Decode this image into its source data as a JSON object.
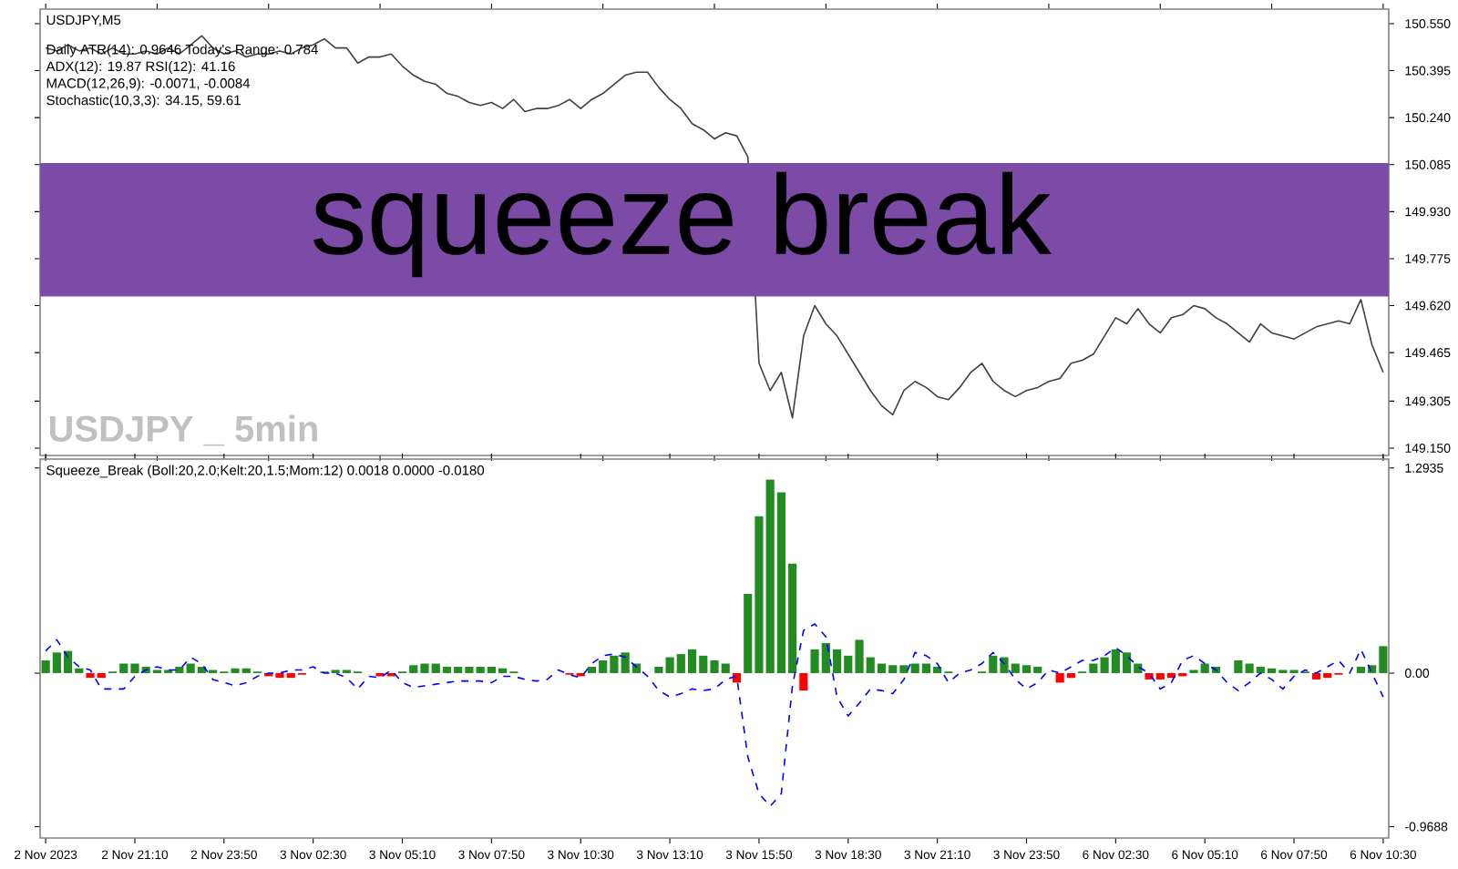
{
  "chart_data": [
    {
      "type": "line",
      "title": "USDJPY,M5",
      "annotations": [
        "Daily ATR(14): 0.9646 Today's Range: 0.784",
        "ADX(12): 19.87 RSI(12): 41.16",
        "MACD(12,26,9): -0.0071, -0.0084",
        "Stochastic(10,3,3): 34.15, 59.61",
        "USDJPY _ 5min"
      ],
      "categories": [
        null,
        null,
        null,
        null,
        null,
        null,
        null,
        null,
        null,
        null,
        null,
        null,
        null,
        null,
        null,
        null,
        null,
        null,
        null,
        null,
        null,
        null,
        null,
        null,
        null,
        null,
        null,
        null,
        null,
        null,
        null,
        null,
        null,
        null,
        null,
        null,
        null,
        null,
        null,
        null,
        null,
        null,
        null,
        null,
        null,
        null,
        null,
        null,
        null,
        null,
        null,
        null,
        null,
        null,
        null,
        null,
        null,
        null,
        null,
        null,
        null,
        null,
        null,
        null,
        null,
        null,
        null,
        null,
        null,
        null,
        null,
        null,
        null,
        null,
        null,
        null,
        null,
        null,
        null,
        null,
        null,
        null,
        null,
        null,
        null,
        null,
        null,
        null,
        null,
        null,
        null,
        null,
        null,
        null,
        null,
        null,
        null,
        null,
        null,
        null,
        null,
        null,
        null,
        null,
        null,
        null,
        null,
        null,
        null,
        null,
        null,
        null,
        null,
        null,
        null,
        null,
        null,
        null,
        null,
        null,
        null
      ],
      "values": [
        150.47,
        150.46,
        150.48,
        150.46,
        150.47,
        150.45,
        150.47,
        150.45,
        150.45,
        150.46,
        150.45,
        150.47,
        150.45,
        150.48,
        150.51,
        150.47,
        150.45,
        150.46,
        150.44,
        150.45,
        150.45,
        150.46,
        150.45,
        150.47,
        150.48,
        150.5,
        150.47,
        150.47,
        150.42,
        150.44,
        150.44,
        150.45,
        150.41,
        150.38,
        150.36,
        150.35,
        150.32,
        150.31,
        150.29,
        150.28,
        150.29,
        150.27,
        150.3,
        150.26,
        150.27,
        150.27,
        150.28,
        150.3,
        150.27,
        150.3,
        150.32,
        150.35,
        150.38,
        150.39,
        150.39,
        150.34,
        150.3,
        150.27,
        150.22,
        150.2,
        150.17,
        150.19,
        150.18,
        150.11,
        149.43,
        149.34,
        149.4,
        149.25,
        149.52,
        149.62,
        149.56,
        149.52,
        149.46,
        149.4,
        149.34,
        149.29,
        149.26,
        149.34,
        149.37,
        149.35,
        149.32,
        149.31,
        149.35,
        149.4,
        149.43,
        149.37,
        149.34,
        149.32,
        149.34,
        149.35,
        149.37,
        149.38,
        149.43,
        149.44,
        149.46,
        149.52,
        149.58,
        149.56,
        149.61,
        149.56,
        149.53,
        149.58,
        149.59,
        149.62,
        149.61,
        149.58,
        149.56,
        149.53,
        149.5,
        149.56,
        149.53,
        149.52,
        149.51,
        149.53,
        149.55,
        149.56,
        149.57,
        149.56,
        149.64,
        149.49,
        149.4
      ],
      "color": "#404040",
      "ylim": [
        149.126,
        150.598
      ],
      "yticks": [
        {
          "value": 150.55,
          "label": "150.550"
        },
        {
          "value": 150.395,
          "label": "150.395"
        },
        {
          "value": 150.24,
          "label": "150.240"
        },
        {
          "value": 150.085,
          "label": "150.085"
        },
        {
          "value": 149.93,
          "label": "149.930"
        },
        {
          "value": 149.775,
          "label": "149.775"
        },
        {
          "value": 149.62,
          "label": "149.620"
        },
        {
          "value": 149.465,
          "label": "149.465"
        },
        {
          "value": 149.305,
          "label": "149.305"
        },
        {
          "value": 149.15,
          "label": "149.150"
        }
      ],
      "bands": [
        {
          "axis": "y",
          "from": 149.65,
          "to": 150.09,
          "label": "squeeze break",
          "color": "#7b4ba6"
        }
      ],
      "tick_labels": "y"
    },
    {
      "type": "bar",
      "title": "Squeeze_Break (Boll:20,2.0;Kelt:20,1.5;Mom:12) 0.0018 0.0000 -0.0180",
      "categories": [
        "2 Nov 2023",
        null,
        null,
        null,
        null,
        null,
        null,
        null,
        "2 Nov 21:10",
        null,
        null,
        null,
        null,
        null,
        null,
        null,
        "2 Nov 23:50",
        null,
        null,
        null,
        null,
        null,
        null,
        null,
        "3 Nov 02:30",
        null,
        null,
        null,
        null,
        null,
        null,
        null,
        "3 Nov 05:10",
        null,
        null,
        null,
        null,
        null,
        null,
        null,
        "3 Nov 07:50",
        null,
        null,
        null,
        null,
        null,
        null,
        null,
        "3 Nov 10:30",
        null,
        null,
        null,
        null,
        null,
        null,
        null,
        "3 Nov 13:10",
        null,
        null,
        null,
        null,
        null,
        null,
        null,
        "3 Nov 15:50",
        null,
        null,
        null,
        null,
        null,
        null,
        null,
        "3 Nov 18:30",
        null,
        null,
        null,
        null,
        null,
        null,
        null,
        "3 Nov 21:10",
        null,
        null,
        null,
        null,
        null,
        null,
        null,
        "3 Nov 23:50",
        null,
        null,
        null,
        null,
        null,
        null,
        null,
        "6 Nov 02:30",
        null,
        null,
        null,
        null,
        null,
        null,
        null,
        "6 Nov 05:10",
        null,
        null,
        null,
        null,
        null,
        null,
        null,
        "6 Nov 07:50",
        null,
        null,
        null,
        null,
        null,
        null,
        null,
        "6 Nov 10:30"
      ],
      "series": [
        {
          "type": "bar",
          "values": [
            0.08,
            0.13,
            0.14,
            0.03,
            -0.03,
            -0.03,
            0.01,
            0.06,
            0.06,
            0.04,
            0.02,
            0.02,
            0.04,
            0.06,
            0.04,
            0.02,
            0.01,
            0.03,
            0.03,
            0.01,
            -0.02,
            -0.03,
            -0.03,
            -0.01,
            0,
            0.01,
            0.02,
            0.02,
            0.01,
            0,
            -0.02,
            -0.02,
            0.01,
            0.05,
            0.06,
            0.06,
            0.04,
            0.04,
            0.04,
            0.04,
            0.04,
            0.03,
            0.01,
            0,
            0,
            0,
            0,
            -0.01,
            -0.02,
            0.04,
            0.08,
            0.11,
            0.13,
            0.06,
            0,
            0.04,
            0.1,
            0.12,
            0.15,
            0.11,
            0.08,
            0.06,
            -0.06,
            0.5,
            0.99,
            1.22,
            1.14,
            0.69,
            -0.11,
            0.15,
            0.19,
            0.15,
            0.11,
            0.21,
            0.1,
            0.06,
            0.05,
            0.05,
            0.06,
            0.06,
            0.04,
            0.01,
            0,
            0,
            0.01,
            0.11,
            0.1,
            0.06,
            0.05,
            0.04,
            0,
            -0.06,
            -0.03,
            0.01,
            0.06,
            0.1,
            0.15,
            0.13,
            0.06,
            -0.04,
            -0.04,
            -0.03,
            -0.02,
            0.02,
            0.06,
            0.04,
            0,
            0.08,
            0.06,
            0.04,
            0.03,
            0.02,
            0.02,
            0.01,
            -0.04,
            -0.03,
            -0.01,
            0,
            0.04,
            0.05,
            0.17
          ],
          "colors": [
            "#228b22",
            "#228b22",
            "#228b22",
            "#228b22",
            "#ff0000",
            "#ff0000",
            "#228b22",
            "#228b22",
            "#228b22",
            "#228b22",
            "#228b22",
            "#228b22",
            "#228b22",
            "#228b22",
            "#228b22",
            "#228b22",
            "#228b22",
            "#228b22",
            "#228b22",
            "#228b22",
            "#ff0000",
            "#ff0000",
            "#ff0000",
            "#ff0000",
            "#228b22",
            "#228b22",
            "#228b22",
            "#228b22",
            "#228b22",
            "#228b22",
            "#ff0000",
            "#ff0000",
            "#228b22",
            "#228b22",
            "#228b22",
            "#228b22",
            "#228b22",
            "#228b22",
            "#228b22",
            "#228b22",
            "#228b22",
            "#228b22",
            "#228b22",
            "#228b22",
            "#228b22",
            "#228b22",
            "#228b22",
            "#ff0000",
            "#ff0000",
            "#228b22",
            "#228b22",
            "#228b22",
            "#228b22",
            "#228b22",
            "#228b22",
            "#228b22",
            "#228b22",
            "#228b22",
            "#228b22",
            "#228b22",
            "#228b22",
            "#228b22",
            "#ff0000",
            "#228b22",
            "#228b22",
            "#228b22",
            "#228b22",
            "#228b22",
            "#ff0000",
            "#228b22",
            "#228b22",
            "#228b22",
            "#228b22",
            "#228b22",
            "#228b22",
            "#228b22",
            "#228b22",
            "#228b22",
            "#228b22",
            "#228b22",
            "#228b22",
            "#228b22",
            "#228b22",
            "#228b22",
            "#228b22",
            "#228b22",
            "#228b22",
            "#228b22",
            "#228b22",
            "#228b22",
            "#228b22",
            "#ff0000",
            "#ff0000",
            "#228b22",
            "#228b22",
            "#228b22",
            "#228b22",
            "#228b22",
            "#228b22",
            "#ff0000",
            "#ff0000",
            "#ff0000",
            "#ff0000",
            "#228b22",
            "#228b22",
            "#228b22",
            "#228b22",
            "#228b22",
            "#228b22",
            "#228b22",
            "#228b22",
            "#228b22",
            "#228b22",
            "#228b22",
            "#ff0000",
            "#ff0000",
            "#ff0000",
            "#228b22",
            "#228b22",
            "#228b22",
            "#228b22"
          ]
        },
        {
          "type": "line",
          "color": "#0000ff",
          "line_style": "dashed",
          "values": [
            0.14,
            0.21,
            0.1,
            0.04,
            0.02,
            -0.1,
            -0.1,
            -0.1,
            -0.02,
            0.02,
            0.04,
            0.02,
            0.02,
            0.1,
            0.06,
            -0.04,
            -0.06,
            -0.08,
            -0.06,
            -0.02,
            0,
            0,
            0.02,
            0.02,
            0.04,
            0,
            0,
            -0.03,
            -0.1,
            -0.02,
            -0.03,
            0.02,
            -0.06,
            -0.09,
            -0.08,
            -0.07,
            -0.06,
            -0.05,
            -0.05,
            -0.05,
            -0.06,
            -0.02,
            -0.02,
            -0.04,
            -0.05,
            -0.04,
            0.02,
            -0.01,
            -0.03,
            0.06,
            0.11,
            0.12,
            0.1,
            0.04,
            -0.02,
            -0.11,
            -0.15,
            -0.13,
            -0.1,
            -0.11,
            -0.1,
            -0.04,
            -0.02,
            -0.53,
            -0.76,
            -0.84,
            -0.76,
            -0.08,
            0.27,
            0.31,
            0.23,
            -0.15,
            -0.27,
            -0.19,
            -0.1,
            -0.11,
            -0.13,
            -0.04,
            0.13,
            0.11,
            0.06,
            -0.06,
            0,
            0.02,
            0.06,
            0.13,
            0.06,
            -0.04,
            -0.1,
            -0.06,
            0.02,
            0,
            0.04,
            0.08,
            0.08,
            0.11,
            0.16,
            0.11,
            0.04,
            0,
            -0.1,
            -0.06,
            0.08,
            0.11,
            0.06,
            0.02,
            -0.06,
            -0.11,
            -0.06,
            0,
            -0.04,
            -0.1,
            -0.02,
            0.02,
            0,
            0.04,
            0.08,
            0,
            0.15,
            0,
            -0.15
          ]
        }
      ],
      "ylim": [
        -1.04,
        1.35
      ],
      "yticks": [
        {
          "value": 1.2935,
          "label": "1.2935"
        },
        {
          "value": 0,
          "label": "0.00"
        },
        {
          "value": -0.9688,
          "label": "-0.9688"
        }
      ]
    }
  ]
}
